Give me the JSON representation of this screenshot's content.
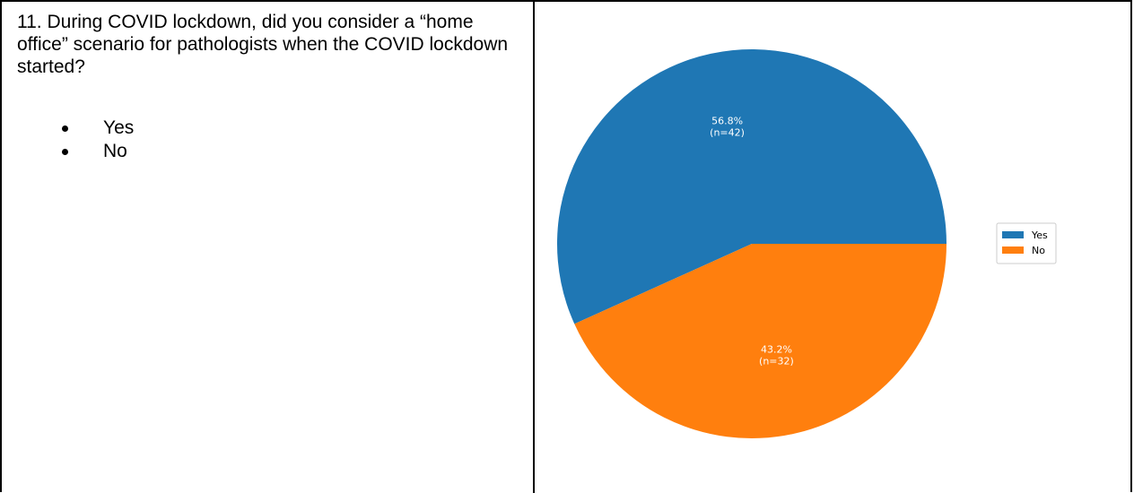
{
  "question": {
    "text": "11. During COVID lockdown, did you consider a “home office” scenario for pathologists when the COVID lockdown started?",
    "options": [
      "Yes",
      "No"
    ]
  },
  "chart_data": {
    "type": "pie",
    "categories": [
      "Yes",
      "No"
    ],
    "values": [
      42,
      32
    ],
    "percentages": [
      "56.8%",
      "43.2%"
    ],
    "labels": [
      "56.8%\n(n=42)",
      "43.2%\n(n=32)"
    ],
    "colors": [
      "#1f77b4",
      "#ff7f0e"
    ],
    "legend": {
      "entries": [
        "Yes",
        "No"
      ],
      "placement": "right"
    },
    "title": ""
  }
}
